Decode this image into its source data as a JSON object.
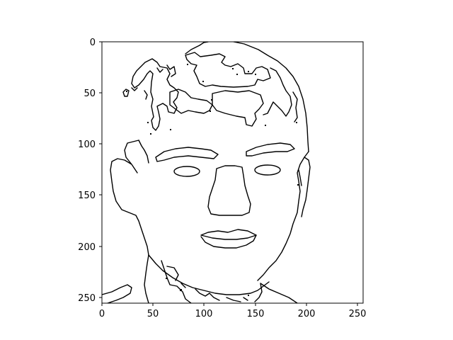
{
  "image_title": "",
  "axes": {
    "x_ticks": [
      "0",
      "50",
      "100",
      "150",
      "200",
      "250"
    ],
    "y_ticks": [
      "0",
      "50",
      "100",
      "150",
      "200",
      "250"
    ],
    "x_range": [
      0,
      255
    ],
    "y_range": [
      0,
      255
    ],
    "y_inverted": true,
    "frame_color": "#000000",
    "background_color": "#ffffff"
  },
  "image": {
    "description_type": "edge-detection output of a face",
    "line_color": "#000000"
  }
}
